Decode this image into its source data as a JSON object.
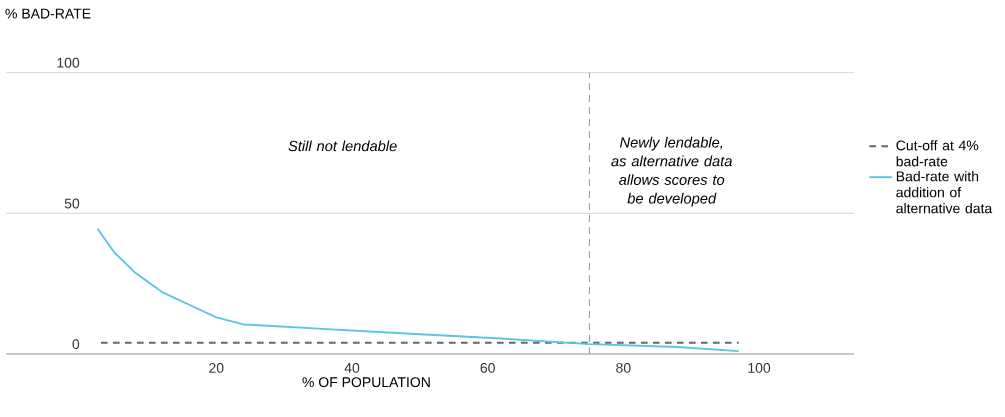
{
  "chart_data": {
    "type": "line",
    "xlabel": "% OF POPULATION",
    "ylabel": "% BAD-RATE",
    "xlim": [
      -11,
      114
    ],
    "ylim": [
      0,
      100
    ],
    "xticks": [
      20,
      40,
      60,
      80,
      100
    ],
    "yticks": [
      0,
      50,
      100
    ],
    "grid": "y",
    "legend": "right",
    "series": [
      {
        "name": "Cut-off at 4% bad-rate",
        "color": "#666666",
        "line_style": "dashed",
        "x": [
          3,
          97
        ],
        "values": [
          4,
          4
        ]
      },
      {
        "name": "Bad-rate with addition of alternative data",
        "color": "#5bc4e0",
        "line_style": "solid",
        "x": [
          2.5,
          5,
          8,
          12,
          16,
          20,
          24,
          35,
          50,
          62,
          75,
          88,
          97
        ],
        "values": [
          44.5,
          36,
          29,
          22,
          17.5,
          13,
          10.5,
          9,
          7,
          5.5,
          3.5,
          2.5,
          1
        ]
      }
    ],
    "ref_lines": [
      {
        "axis": "x",
        "value": 75,
        "color": "#999999",
        "line_style": "dashed"
      }
    ],
    "annotations": [
      "Still not lendable",
      "Newly lendable, as alternative data allows scores to be developed"
    ]
  }
}
